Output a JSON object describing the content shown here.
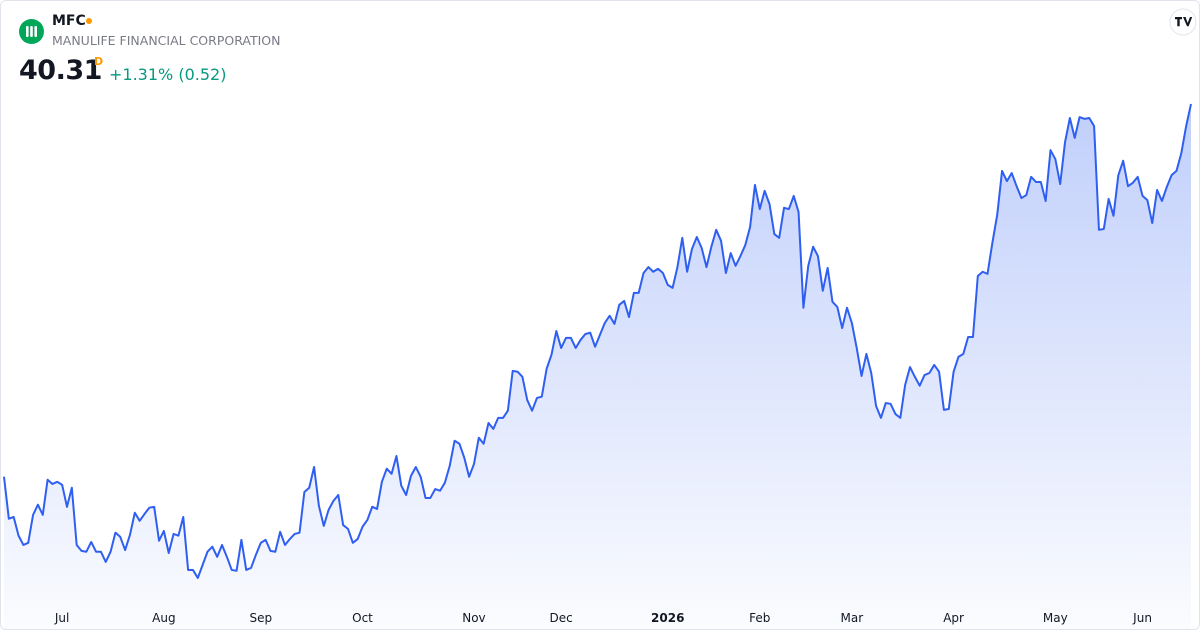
{
  "header": {
    "symbol": "MFC",
    "name": "MANULIFE FINANCIAL CORPORATION",
    "price": "40.31",
    "interval": "D",
    "change": "+1.31% (0.52)"
  },
  "chart_data": {
    "type": "area",
    "color": "#2f5ff0",
    "categories": [
      null,
      null,
      null,
      null,
      null,
      null,
      null,
      null,
      null,
      null,
      null,
      null,
      "Jul",
      null,
      null,
      null,
      null,
      null,
      null,
      null,
      null,
      null,
      null,
      null,
      null,
      null,
      null,
      null,
      null,
      null,
      null,
      null,
      null,
      "Aug",
      null,
      null,
      null,
      null,
      null,
      null,
      null,
      null,
      null,
      null,
      null,
      null,
      null,
      null,
      null,
      null,
      null,
      null,
      null,
      "Sep",
      null,
      null,
      null,
      null,
      null,
      null,
      null,
      null,
      null,
      null,
      null,
      null,
      null,
      null,
      null,
      null,
      null,
      null,
      null,
      null,
      "Oct",
      null,
      null,
      null,
      null,
      null,
      null,
      null,
      null,
      null,
      null,
      null,
      null,
      null,
      null,
      null,
      null,
      null,
      null,
      null,
      null,
      null,
      null,
      "Nov",
      null,
      null,
      null,
      null,
      null,
      null,
      null,
      null,
      null,
      null,
      null,
      null,
      null,
      null,
      null,
      null,
      null,
      "Dec",
      null,
      null,
      null,
      null,
      null,
      null,
      null,
      null,
      null,
      null,
      null,
      null,
      null,
      null,
      null,
      null,
      null,
      null,
      null,
      null,
      null,
      "2026",
      null,
      null,
      null,
      null,
      null,
      null,
      null,
      null,
      null,
      null,
      null,
      null,
      null,
      null,
      null,
      null,
      null,
      null,
      "Feb",
      null,
      null,
      null,
      null,
      null,
      null,
      null,
      null,
      null,
      null,
      null,
      null,
      null,
      null,
      null,
      null,
      null,
      null,
      "Mar",
      null,
      null,
      null,
      null,
      null,
      null,
      null,
      null,
      null,
      null,
      null,
      null,
      null,
      null,
      null,
      null,
      null,
      null,
      null,
      null,
      "Apr",
      null,
      null,
      null,
      null,
      null,
      null,
      null,
      null,
      null,
      null,
      null,
      null,
      null,
      null,
      null,
      null,
      null,
      null,
      null,
      null,
      "May",
      null,
      null,
      null,
      null,
      null,
      null,
      null,
      null,
      null,
      null,
      null,
      null,
      null,
      null,
      null,
      null,
      null,
      "Jun",
      null,
      null,
      null,
      null,
      null,
      null,
      null,
      null,
      null,
      null
    ],
    "values": [
      31.51,
      30.52,
      30.56,
      30.12,
      29.9,
      29.95,
      30.61,
      30.85,
      30.61,
      31.44,
      31.34,
      31.39,
      31.32,
      30.8,
      31.25,
      29.9,
      29.76,
      29.74,
      29.97,
      29.74,
      29.74,
      29.5,
      29.74,
      30.19,
      30.09,
      29.78,
      30.14,
      30.66,
      30.47,
      30.63,
      30.78,
      30.8,
      30.0,
      30.23,
      29.71,
      30.16,
      30.12,
      30.56,
      29.31,
      29.31,
      29.12,
      29.43,
      29.74,
      29.86,
      29.62,
      29.9,
      29.62,
      29.31,
      29.29,
      30.02,
      29.31,
      29.36,
      29.67,
      29.95,
      30.02,
      29.76,
      29.74,
      30.21,
      29.9,
      30.04,
      30.16,
      30.19,
      31.15,
      31.25,
      31.74,
      30.82,
      30.35,
      30.73,
      30.94,
      31.08,
      30.37,
      30.28,
      29.95,
      30.04,
      30.33,
      30.49,
      30.8,
      30.75,
      31.39,
      31.7,
      31.58,
      32.0,
      31.3,
      31.08,
      31.53,
      31.74,
      31.51,
      31.01,
      31.01,
      31.22,
      31.18,
      31.37,
      31.77,
      32.36,
      32.29,
      31.96,
      31.51,
      31.81,
      32.43,
      32.29,
      32.78,
      32.64,
      32.9,
      32.9,
      33.07,
      34.01,
      33.99,
      33.87,
      33.32,
      33.07,
      33.37,
      33.4,
      34.06,
      34.39,
      34.95,
      34.55,
      34.79,
      34.79,
      34.55,
      34.74,
      34.88,
      34.91,
      34.58,
      34.86,
      35.14,
      35.31,
      35.12,
      35.57,
      35.66,
      35.28,
      35.85,
      35.85,
      36.32,
      36.46,
      36.35,
      36.42,
      36.32,
      36.04,
      35.97,
      36.46,
      37.15,
      36.35,
      36.89,
      37.17,
      36.91,
      36.46,
      36.94,
      37.34,
      37.08,
      36.32,
      36.79,
      36.49,
      36.72,
      36.98,
      37.41,
      38.4,
      37.83,
      38.26,
      37.95,
      37.24,
      37.15,
      37.86,
      37.83,
      38.14,
      37.76,
      35.5,
      36.49,
      36.94,
      36.72,
      35.9,
      36.44,
      35.64,
      35.52,
      35.02,
      35.5,
      35.14,
      34.55,
      33.89,
      34.41,
      33.96,
      33.18,
      32.9,
      33.25,
      33.23,
      32.99,
      32.9,
      33.68,
      34.1,
      33.87,
      33.66,
      33.91,
      33.96,
      34.15,
      33.99,
      33.09,
      33.11,
      33.99,
      34.34,
      34.41,
      34.81,
      34.81,
      36.25,
      36.35,
      36.3,
      37.03,
      37.69,
      38.73,
      38.49,
      38.68,
      38.37,
      38.09,
      38.16,
      38.59,
      38.47,
      38.47,
      38.02,
      39.22,
      39.01,
      38.42,
      39.41,
      39.98,
      39.51,
      40.0,
      39.96,
      39.98,
      39.79,
      37.34,
      37.36,
      38.07,
      37.67,
      38.63,
      38.97,
      38.37,
      38.45,
      38.59,
      38.14,
      38.04,
      37.5,
      38.28,
      38.02,
      38.35,
      38.63,
      38.73,
      39.15,
      39.79,
      40.31
    ]
  }
}
